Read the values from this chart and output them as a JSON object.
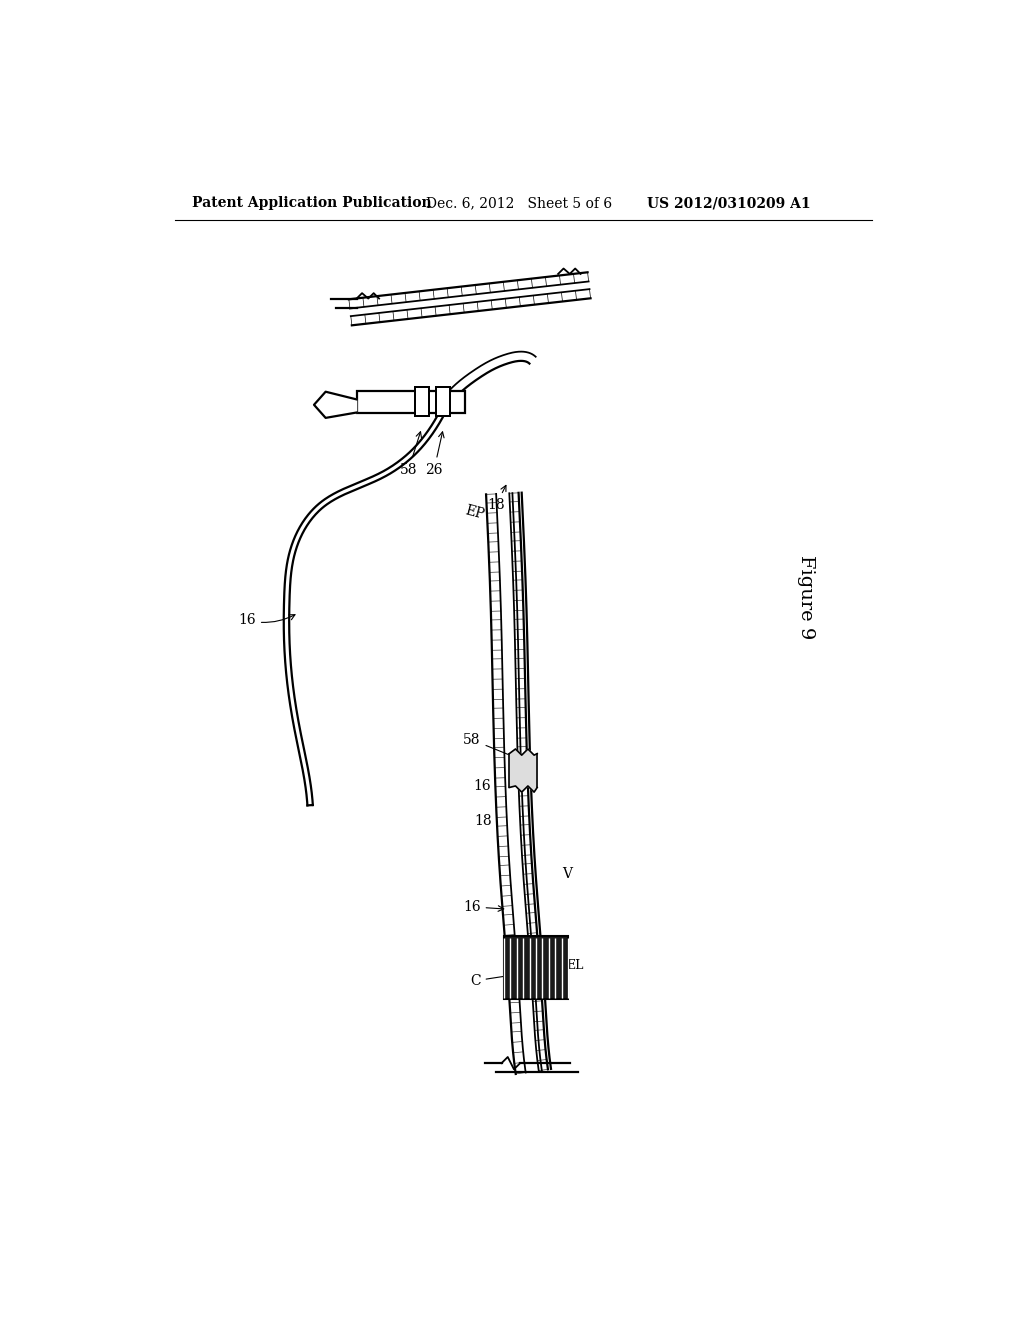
{
  "bg_color": "#ffffff",
  "header_left": "Patent Application Publication",
  "header_mid": "Dec. 6, 2012   Sheet 5 of 6",
  "header_right": "US 2012/0310209 A1",
  "figure_label": "Figure 9",
  "line_color": "#000000",
  "lw_main": 1.6,
  "lw_thin": 1.0,
  "lw_hatch": 0.7,
  "label_fontsize": 10,
  "header_fontsize": 10
}
